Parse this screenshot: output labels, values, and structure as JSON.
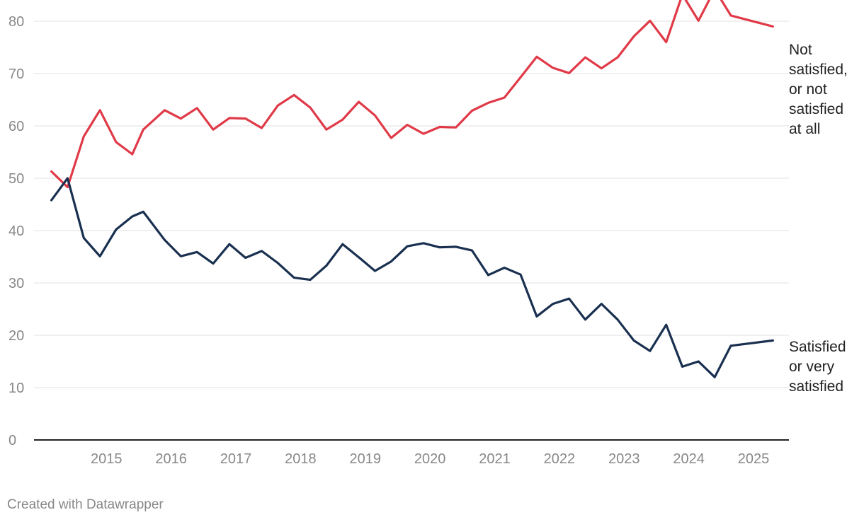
{
  "credit": "Created with Datawrapper",
  "chart_data": {
    "type": "line",
    "title": "",
    "xlabel": "",
    "ylabel": "",
    "ylim": [
      0,
      80
    ],
    "xlim": [
      2014.1,
      2025.35
    ],
    "yticks": [
      0,
      10,
      20,
      30,
      40,
      50,
      60,
      70,
      80
    ],
    "xticks": [
      "2015",
      "2016",
      "2017",
      "2018",
      "2019",
      "2020",
      "2021",
      "2022",
      "2023",
      "2024",
      "2025"
    ],
    "grid": true,
    "legend": "direct labels at line ends",
    "x": [
      2014.15,
      2014.4,
      2014.65,
      2014.9,
      2015.15,
      2015.4,
      2015.57,
      2015.9,
      2016.15,
      2016.4,
      2016.65,
      2016.9,
      2017.15,
      2017.4,
      2017.65,
      2017.9,
      2018.15,
      2018.4,
      2018.65,
      2018.9,
      2019.15,
      2019.4,
      2019.65,
      2019.9,
      2020.15,
      2020.4,
      2020.65,
      2020.9,
      2021.15,
      2021.4,
      2021.65,
      2021.9,
      2022.15,
      2022.4,
      2022.65,
      2022.9,
      2023.15,
      2023.4,
      2023.65,
      2023.9,
      2024.15,
      2024.4,
      2024.65,
      2025.3
    ],
    "series": [
      {
        "name": "Not satisfied, or not satisfied at all",
        "color": "#e03a48",
        "values": [
          51.3,
          48.3,
          58.0,
          63.0,
          56.9,
          54.6,
          59.3,
          63.0,
          61.4,
          63.4,
          59.3,
          61.5,
          61.4,
          59.6,
          63.9,
          65.9,
          63.5,
          59.3,
          61.2,
          64.6,
          62.0,
          57.7,
          60.2,
          58.5,
          59.8,
          59.7,
          62.9,
          64.4,
          65.4,
          69.3,
          73.2,
          71.1,
          70.1,
          73.1,
          71.0,
          73.1,
          77.1,
          80.1,
          76.0,
          85.1,
          80.1,
          86.1,
          81.1,
          79.0
        ]
      },
      {
        "name": "Satisfied or very satisfied",
        "color": "#1a3050",
        "values": [
          45.8,
          50.0,
          38.6,
          35.1,
          40.2,
          42.7,
          43.6,
          38.2,
          35.1,
          35.9,
          33.7,
          37.4,
          34.8,
          36.1,
          33.8,
          31.0,
          30.6,
          33.3,
          37.4,
          34.9,
          32.3,
          34.1,
          37.0,
          37.6,
          36.8,
          36.9,
          36.2,
          31.5,
          32.9,
          31.6,
          23.6,
          26.0,
          27.0,
          23.0,
          26.0,
          23.0,
          19.0,
          17.0,
          22.0,
          14.0,
          15.0,
          12.0,
          18.0,
          19.0
        ]
      }
    ]
  },
  "labels": {
    "red_lines": [
      "Not",
      "satisfied,",
      "or not",
      "satisfied",
      "at all"
    ],
    "blue_lines": [
      "Satisfied",
      "or very",
      "satisfied"
    ]
  }
}
